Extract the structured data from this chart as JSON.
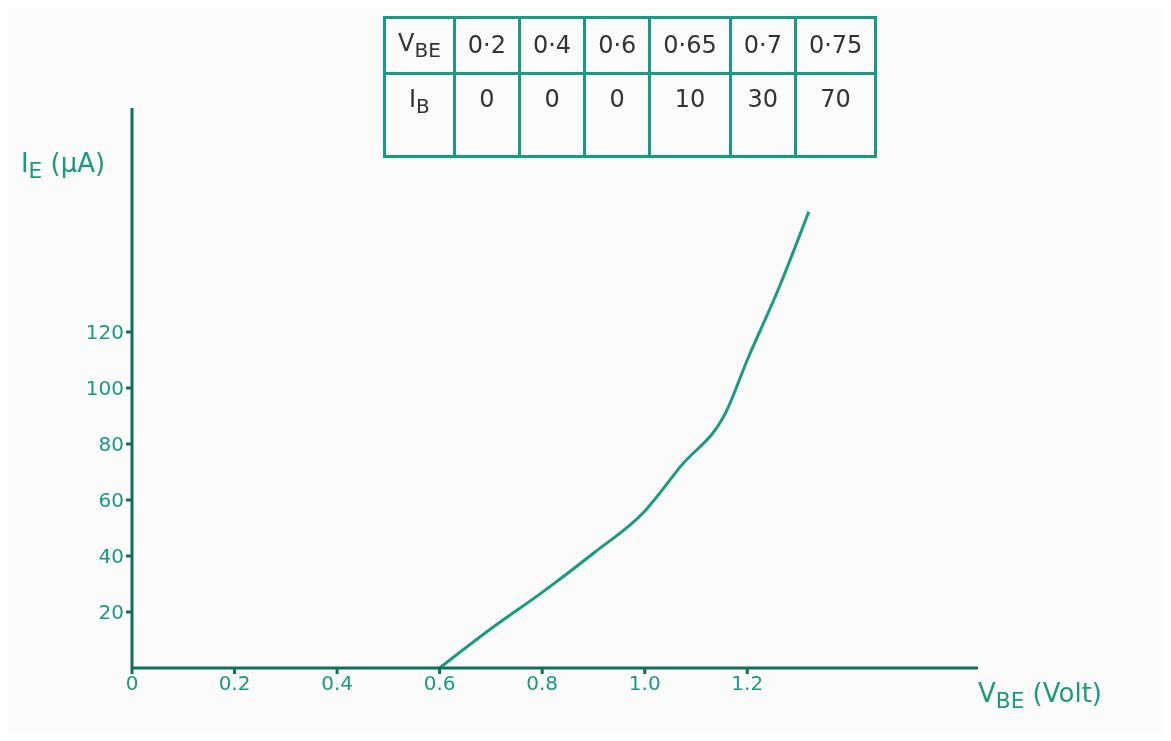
{
  "chart_data": [
    {
      "type": "line",
      "xlabel": "V$_{BE}$ (Volt)",
      "ylabel": "I$_{E}$ (μA)",
      "x": [
        0.6,
        0.7,
        0.8,
        0.9,
        1.0,
        1.07,
        1.16,
        1.2,
        1.26,
        1.32
      ],
      "series": [
        {
          "color": "#1a9a80",
          "values": [
            0,
            14,
            27,
            41,
            56,
            72,
            92,
            110,
            135,
            163
          ]
        }
      ],
      "xlim": [
        0,
        1.65
      ],
      "ylim": [
        0,
        200
      ],
      "xticks": [
        0,
        0.2,
        0.4,
        0.6,
        0.8,
        {
          "value": 1.0,
          "label": "1.0"
        },
        1.2
      ],
      "yticks": [
        20,
        40,
        60,
        80,
        100,
        120
      ],
      "grid": false,
      "legend": false,
      "marker": "none",
      "line_style": "solid"
    },
    {
      "type": "other",
      "xlabel": "V$_{BE}$",
      "ylabel": "I$_{B}$",
      "categories": [
        "0·2",
        "0·4",
        "0·6",
        "0·65",
        "0·7",
        "0·75"
      ],
      "values": [
        0,
        0,
        0,
        10,
        30,
        70
      ],
      "color": "#1a9a80",
      "data_labels": true
    }
  ]
}
